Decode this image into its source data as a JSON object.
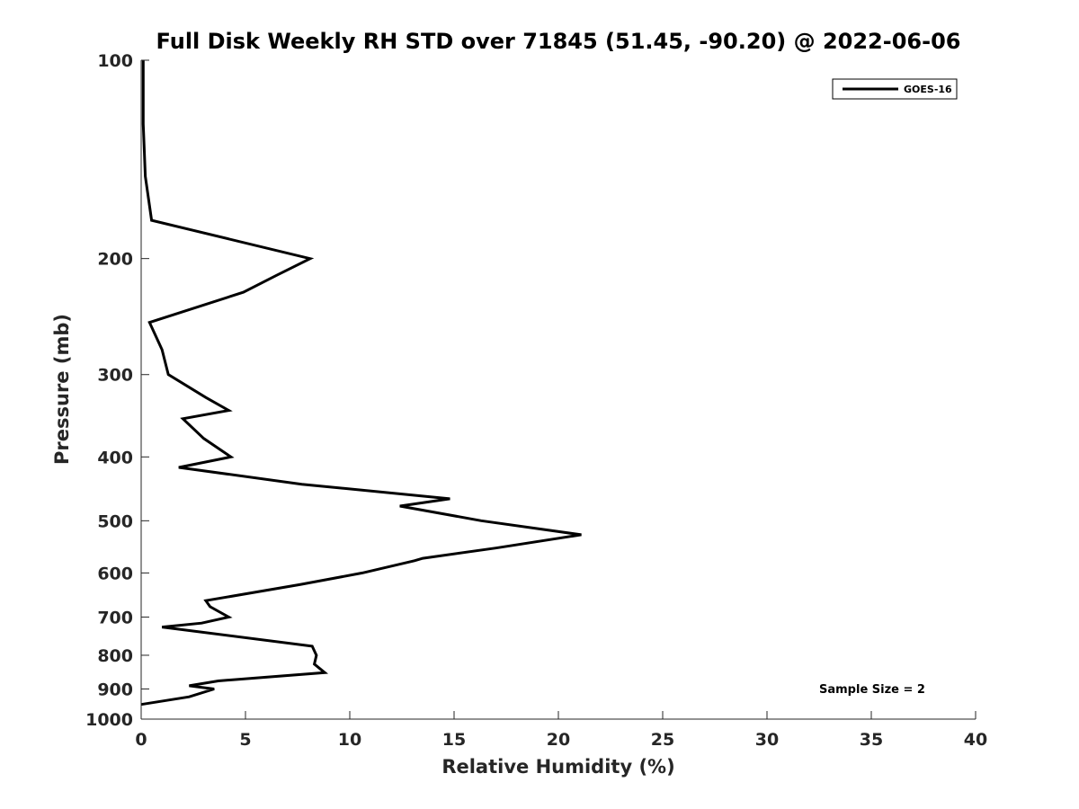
{
  "chart_data": {
    "type": "line",
    "title": "Full Disk Weekly RH STD over 71845 (51.45, -90.20) @ 2022-06-06",
    "xlabel": "Relative Humidity (%)",
    "ylabel": "Pressure (mb)",
    "xlim": [
      0,
      40
    ],
    "ylim": [
      1000,
      100
    ],
    "yscale": "log",
    "y_reversed": true,
    "xticks": [
      "0",
      "5",
      "10",
      "15",
      "20",
      "25",
      "30",
      "35",
      "40"
    ],
    "yticks": [
      "100",
      "200",
      "300",
      "400",
      "500",
      "600",
      "700",
      "800",
      "900",
      "1000"
    ],
    "grid": false,
    "legend": {
      "position": "top-right",
      "entries": [
        "GOES-16"
      ]
    },
    "annotation": "Sample Size = 2",
    "series": [
      {
        "name": "GOES-16",
        "color": "#000000",
        "points": [
          [
            0.1,
            100
          ],
          [
            0.1,
            125
          ],
          [
            0.2,
            150
          ],
          [
            0.5,
            175
          ],
          [
            8.1,
            200
          ],
          [
            6.5,
            212
          ],
          [
            4.9,
            225
          ],
          [
            0.4,
            250
          ],
          [
            1.0,
            275
          ],
          [
            1.3,
            300
          ],
          [
            3.1,
            325
          ],
          [
            4.2,
            340
          ],
          [
            2.0,
            350
          ],
          [
            3.0,
            375
          ],
          [
            4.3,
            400
          ],
          [
            1.8,
            415
          ],
          [
            7.7,
            440
          ],
          [
            14.8,
            463
          ],
          [
            12.4,
            475
          ],
          [
            16.3,
            500
          ],
          [
            21.1,
            525
          ],
          [
            17.0,
            550
          ],
          [
            13.5,
            570
          ],
          [
            13.1,
            575
          ],
          [
            10.6,
            600
          ],
          [
            7.6,
            625
          ],
          [
            3.1,
            661
          ],
          [
            3.3,
            675
          ],
          [
            4.2,
            700
          ],
          [
            2.9,
            715
          ],
          [
            1.0,
            725
          ],
          [
            8.2,
            775
          ],
          [
            8.4,
            800
          ],
          [
            8.3,
            825
          ],
          [
            8.8,
            850
          ],
          [
            3.7,
            875
          ],
          [
            2.3,
            890
          ],
          [
            3.5,
            900
          ],
          [
            2.3,
            925
          ],
          [
            0.0,
            950
          ]
        ]
      }
    ]
  }
}
